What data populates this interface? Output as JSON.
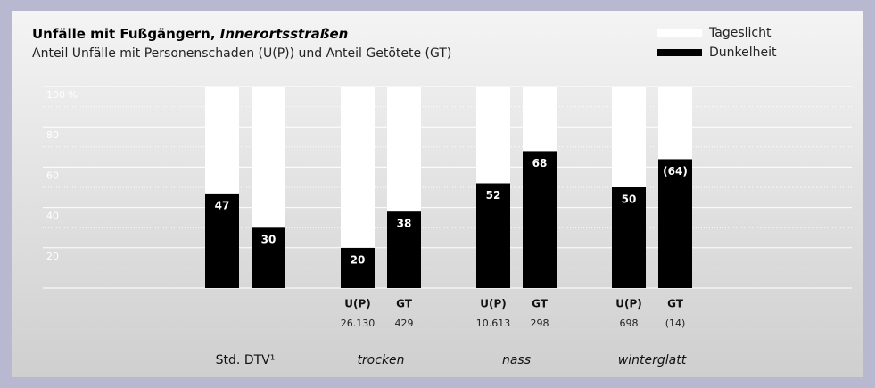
{
  "chart_data": {
    "type": "stacked-bar",
    "title": "Unfälle mit Fußgängern,",
    "title_emphasis": "Innerortsstraßen",
    "subtitle": "Anteil Unfälle mit Personenschaden (U(P)) und Anteil Getötete (GT)",
    "categories": [
      null,
      null,
      "U(P)",
      "GT",
      "U(P)",
      "GT",
      "U(P)",
      "GT"
    ],
    "counts": [
      null,
      null,
      "26.130",
      "429",
      "10.613",
      "298",
      "698",
      "(14)"
    ],
    "groups": [
      "Std. DTV¹",
      "trocken",
      "nass",
      "winterglatt"
    ],
    "series": [
      {
        "name": "Dunkelheit",
        "color": "#000000",
        "values": [
          47,
          30,
          20,
          38,
          52,
          68,
          50,
          64
        ],
        "value_labels": [
          "47",
          "30",
          "20",
          "38",
          "52",
          "68",
          "50",
          "(64)"
        ]
      },
      {
        "name": "Tageslicht",
        "color": "#ffffff",
        "values": [
          53,
          70,
          80,
          62,
          48,
          32,
          50,
          36
        ]
      }
    ],
    "ylim": [
      0,
      100
    ],
    "yticks": [
      20,
      40,
      60,
      80,
      {
        "value": 100,
        "label": "100 %"
      }
    ],
    "yminor": [
      10,
      30,
      50,
      70,
      90
    ],
    "grid": true,
    "legend": "top-right"
  }
}
